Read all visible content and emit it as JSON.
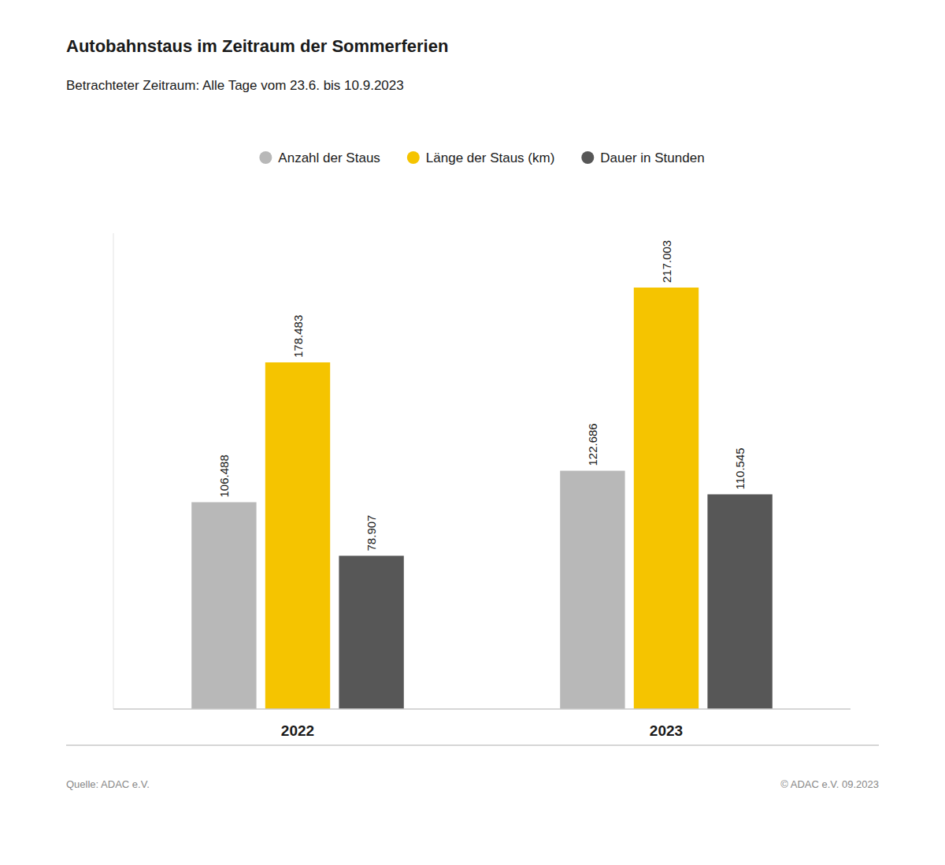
{
  "chart_data": {
    "type": "bar",
    "title": "Autobahnstaus im Zeitraum der Sommerferien",
    "subtitle": "Betrachteter Zeitraum: Alle Tage vom 23.6. bis 10.9.2023",
    "categories": [
      "2022",
      "2023"
    ],
    "series": [
      {
        "name": "Anzahl der Staus",
        "color": "#b8b8b8",
        "values": [
          106488,
          122686
        ],
        "value_labels": [
          "106.488",
          "122.686"
        ]
      },
      {
        "name": "Länge der Staus (km)",
        "color": "#f5c400",
        "values": [
          178483,
          217003
        ],
        "value_labels": [
          "178.483",
          "217.003"
        ]
      },
      {
        "name": "Dauer in Stunden",
        "color": "#575757",
        "values": [
          78907,
          110545
        ],
        "value_labels": [
          "78.907",
          "110.545"
        ]
      }
    ],
    "ylim": [
      0,
      245000
    ],
    "data_labels": true,
    "tick_labels": "x",
    "grid": false,
    "legend": "top",
    "annotations": [
      "Quelle: ADAC e.V.",
      "© ADAC e.V. 09.2023"
    ]
  }
}
